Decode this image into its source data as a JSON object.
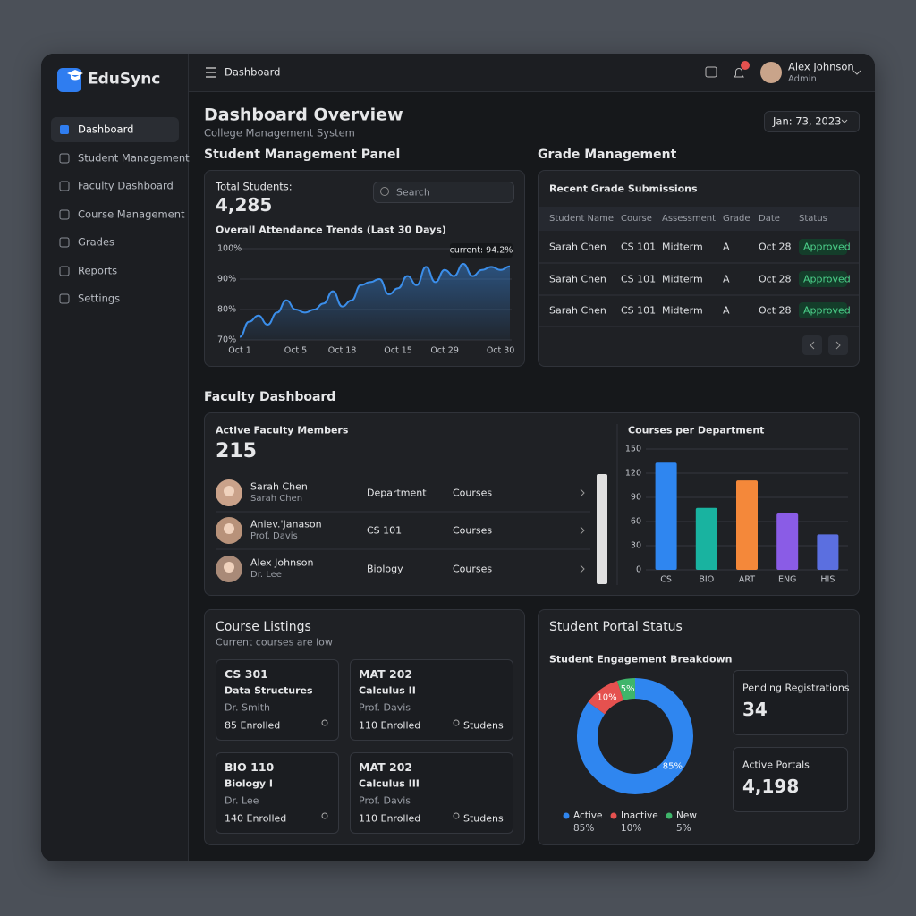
{
  "sidebar": {
    "brand": "EduSync",
    "nav": [
      "Dashboard",
      "Student Management",
      "Faculty Dashboard",
      "Course Management",
      "Grades",
      "Reports",
      "Settings"
    ]
  },
  "topbar": {
    "page": "Dashboard",
    "badge": "1",
    "user": "Alex Johnson",
    "role": "Admin"
  },
  "header": {
    "title": "Dashboard Overview",
    "subtitle": "College Management System",
    "date": "Jan: 73, 2023"
  },
  "student_panel": {
    "title": "Student Management Panel",
    "total_label": "Total Students:",
    "total": "4,285",
    "search": "Search"
  },
  "grades": {
    "title": "Grade Management",
    "subtitle": "Recent Grade Submissions",
    "columns": [
      "Student Name",
      "Course",
      "Assessment",
      "Grade",
      "Date",
      "Status"
    ],
    "rows": [
      [
        "Sarah Chen",
        "CS 101",
        "Midterm",
        "A",
        "Oct 28",
        "Approved"
      ],
      [
        "Sarah Chen",
        "CS 101",
        "Midterm",
        "A",
        "Oct 28",
        "Approved"
      ],
      [
        "Sarah Chen",
        "CS 101",
        "Midterm",
        "A",
        "Oct 28",
        "Approved"
      ]
    ]
  },
  "faculty": {
    "title": "Faculty Dashboard",
    "label": "Active Faculty Members",
    "count": "215",
    "rows": [
      [
        "Sarah Chen",
        "Sarah Chen",
        "Department",
        "Courses"
      ],
      [
        "Aniev.'Janason",
        "Prof. Davis",
        "CS 101",
        "Courses"
      ],
      [
        "Alex Johnson",
        "Dr. Lee",
        "Biology",
        "Courses"
      ]
    ]
  },
  "courses": {
    "title": "Course Listings",
    "subtitle": "Current courses are low",
    "cards": [
      [
        "CS 301",
        "Data Structures",
        "Dr. Smith",
        "85 Enrolled"
      ],
      [
        "MAT 202",
        "Calculus II",
        "Prof. Davis",
        "110 Enrolled",
        "Studens"
      ],
      [
        "BIO 110",
        "Biology I",
        "Dr. Lee",
        "140 Enrolled"
      ],
      [
        "MAT 202",
        "Calculus III",
        "Prof. Davis",
        "110 Enrolled",
        "Studens"
      ]
    ]
  },
  "portal": {
    "title": "Student Portal Status",
    "stats": [
      [
        "Pending Registrations",
        "34"
      ],
      [
        "Active Portals",
        "4,198"
      ]
    ]
  },
  "chart_data": [
    {
      "type": "line",
      "title": "Overall Attendance Trends (Last 30 Days)",
      "annotation": "current: 94.2%",
      "x": [
        1,
        2,
        3,
        4,
        5,
        6,
        7,
        8,
        9,
        10,
        11,
        12,
        13,
        14,
        15,
        16,
        17,
        18,
        19,
        20,
        21,
        22,
        23,
        24,
        25,
        26,
        27,
        28,
        29,
        30
      ],
      "values": [
        71,
        76,
        78,
        75,
        79,
        83,
        80,
        79,
        80,
        82,
        86,
        81,
        83,
        88,
        89,
        90,
        85,
        87,
        91,
        88,
        94,
        89,
        93,
        91,
        95,
        91,
        93,
        94,
        93,
        94.2
      ],
      "color": "#3b8eea",
      "xlim": [
        1,
        30
      ],
      "ylim": [
        70,
        100
      ],
      "xticks": [
        {
          "value": 1,
          "label": "Oct 1"
        },
        {
          "value": 7,
          "label": "Oct 5"
        },
        {
          "value": 12,
          "label": "Oct 18"
        },
        {
          "value": 18,
          "label": "Oct 15"
        },
        {
          "value": 23,
          "label": "Oct 29"
        },
        {
          "value": 29,
          "label": "Oct 30"
        }
      ],
      "yticks": [
        {
          "value": 70,
          "label": "70%"
        },
        {
          "value": 80,
          "label": "80%"
        },
        {
          "value": 90,
          "label": "90%"
        },
        {
          "value": 100,
          "label": "100%"
        }
      ],
      "grid": true
    },
    {
      "type": "bar",
      "title": "Courses per Department",
      "categories": [
        "CS",
        "BIO",
        "ART",
        "ENG",
        "HIS"
      ],
      "values": [
        133,
        77,
        111,
        70,
        44
      ],
      "colors": [
        "#2f86f0",
        "#19b3a0",
        "#f4883a",
        "#8a5ce6",
        "#5b6fe0"
      ],
      "ylim": [
        0,
        150
      ],
      "yticks": [
        0,
        30,
        60,
        90,
        120,
        150
      ],
      "grid": true
    },
    {
      "type": "pie",
      "title": "Student Engagement Breakdown",
      "categories": [
        "Active",
        "Inactive",
        "New"
      ],
      "values": [
        85,
        10,
        5
      ],
      "value_labels": [
        "85%",
        "10%",
        "5%"
      ],
      "colors": [
        "#2f86f0",
        "#e5514f",
        "#3fb56a"
      ],
      "donut": true
    }
  ]
}
